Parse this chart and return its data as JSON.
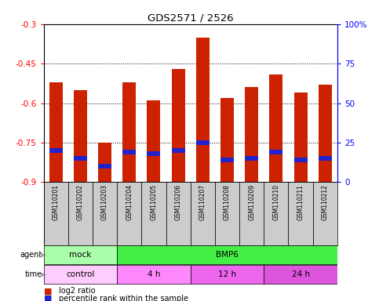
{
  "title": "GDS2571 / 2526",
  "samples": [
    "GSM110201",
    "GSM110202",
    "GSM110203",
    "GSM110204",
    "GSM110205",
    "GSM110206",
    "GSM110207",
    "GSM110208",
    "GSM110209",
    "GSM110210",
    "GSM110211",
    "GSM110212"
  ],
  "log2_ratio": [
    -0.52,
    -0.55,
    -0.75,
    -0.52,
    -0.59,
    -0.47,
    -0.35,
    -0.58,
    -0.54,
    -0.49,
    -0.56,
    -0.53
  ],
  "percentile": [
    20,
    15,
    10,
    19,
    18,
    20,
    25,
    14,
    15,
    19,
    14,
    15
  ],
  "ylim_left": [
    -0.9,
    -0.3
  ],
  "ylim_right": [
    0,
    100
  ],
  "yticks_left": [
    -0.9,
    -0.75,
    -0.6,
    -0.45,
    -0.3
  ],
  "yticks_right": [
    0,
    25,
    50,
    75,
    100
  ],
  "ytick_labels_left": [
    "-0.9",
    "-0.75",
    "-0.6",
    "-0.45",
    "-0.3"
  ],
  "ytick_labels_right": [
    "0",
    "25",
    "50",
    "75",
    "100%"
  ],
  "bar_color": "#cc2200",
  "blue_color": "#2222cc",
  "agent_row": [
    {
      "label": "mock",
      "start": 0,
      "end": 3,
      "color": "#aaffaa"
    },
    {
      "label": "BMP6",
      "start": 3,
      "end": 12,
      "color": "#44ee44"
    }
  ],
  "time_row": [
    {
      "label": "control",
      "start": 0,
      "end": 3,
      "color": "#ffccff"
    },
    {
      "label": "4 h",
      "start": 3,
      "end": 6,
      "color": "#ff88ff"
    },
    {
      "label": "12 h",
      "start": 6,
      "end": 9,
      "color": "#ee66ee"
    },
    {
      "label": "24 h",
      "start": 9,
      "end": 12,
      "color": "#dd55dd"
    }
  ],
  "legend_red_label": "log2 ratio",
  "legend_blue_label": "percentile rank within the sample",
  "bg_color": "#ffffff",
  "bar_width": 0.55,
  "tick_label_area_color": "#cccccc"
}
